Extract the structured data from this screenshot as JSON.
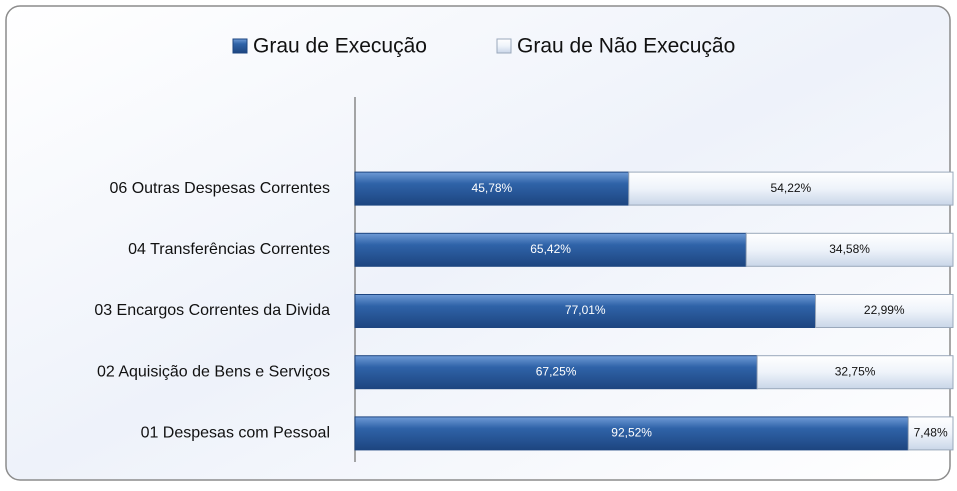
{
  "chart_data": {
    "type": "stacked-bar-horizontal",
    "categories": [
      "06 Outras Despesas Correntes",
      "04 Transferências Correntes",
      "03 Encargos Correntes da Divida",
      "02 Aquisição de Bens e Serviços",
      "01 Despesas com Pessoal"
    ],
    "series": [
      {
        "name": "Grau de Execução",
        "color": "#2f63a8",
        "values": [
          45.78,
          65.42,
          77.01,
          67.25,
          92.52
        ],
        "value_labels": [
          "45,78%",
          "65,42%",
          "77,01%",
          "67,25%",
          "92,52%"
        ]
      },
      {
        "name": "Grau de Não Execução",
        "color": "#e6eef8",
        "values": [
          54.22,
          34.58,
          22.99,
          32.75,
          7.48
        ],
        "value_labels": [
          "54,22%",
          "34,58%",
          "22,99%",
          "32,75%",
          "7,48%"
        ]
      }
    ],
    "legend": "top"
  }
}
